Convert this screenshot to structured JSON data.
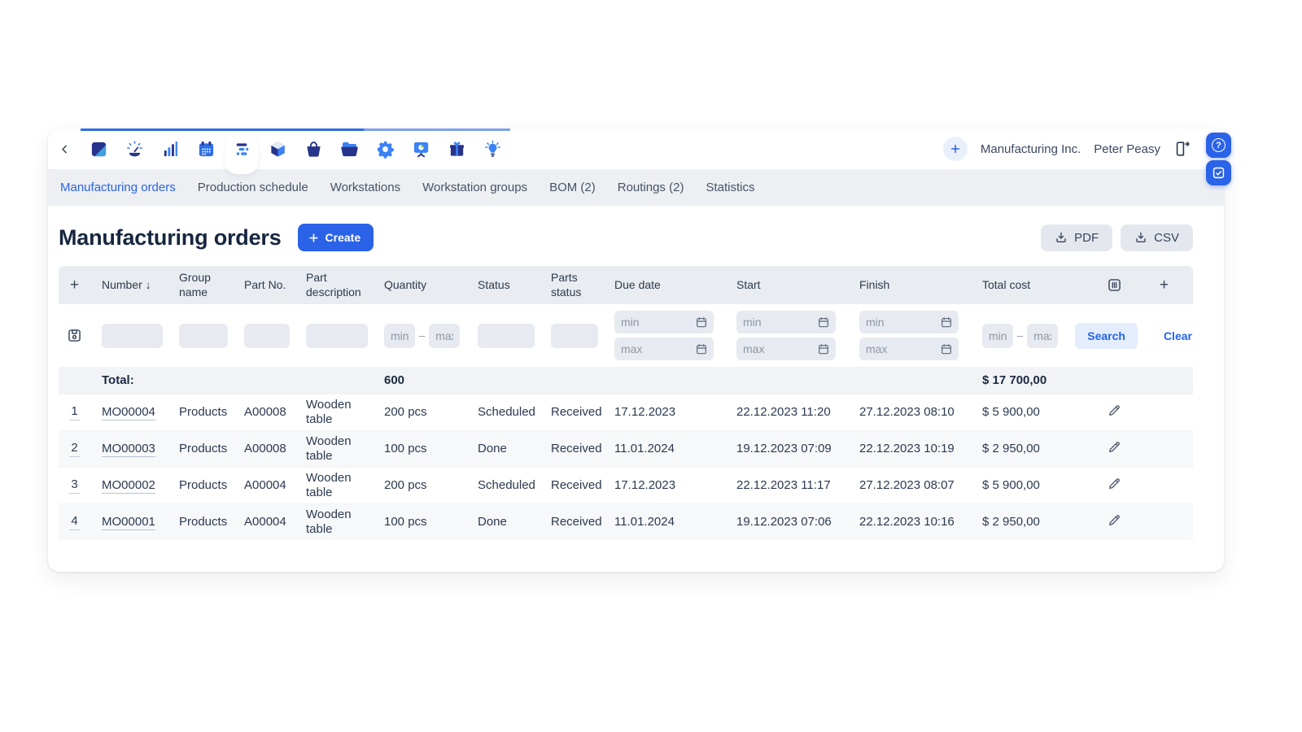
{
  "colors": {
    "accent": "#2a63e8",
    "link": "#2563eb",
    "header_bg": "#e9ecf1",
    "input_bg": "#e7eaf0",
    "tabbar_bg": "#edeff3",
    "navy": "#27348b",
    "blue": "#3b82f6"
  },
  "topbar": {
    "company": "Manufacturing Inc.",
    "user": "Peter Peasy",
    "app_icons": [
      "logo-icon",
      "dashboard-gauge-icon",
      "statistics-icon",
      "calendar-icon",
      "production-planning-icon",
      "stock-icon",
      "procurement-icon",
      "documents-icon",
      "settings-icon",
      "demo-icon",
      "rewards-icon",
      "tips-icon"
    ],
    "edge": {
      "help_glyph": "?"
    }
  },
  "tabs": [
    {
      "label": "Manufacturing orders",
      "active": true
    },
    {
      "label": "Production schedule",
      "active": false
    },
    {
      "label": "Workstations",
      "active": false
    },
    {
      "label": "Workstation groups",
      "active": false
    },
    {
      "label": "BOM (2)",
      "active": false
    },
    {
      "label": "Routings (2)",
      "active": false
    },
    {
      "label": "Statistics",
      "active": false
    }
  ],
  "page": {
    "title": "Manufacturing orders",
    "create_label": "Create",
    "pdf_label": "PDF",
    "csv_label": "CSV"
  },
  "filters": {
    "min_placeholder": "min",
    "max_placeholder": "max",
    "range_separator": "–",
    "search_label": "Search",
    "clear_label": "Clear"
  },
  "table": {
    "header": {
      "add_filter": "+",
      "columns": [
        "Number",
        "Group name",
        "Part No.",
        "Part description",
        "Quantity",
        "Status",
        "Parts status",
        "Due date",
        "Start",
        "Finish",
        "Total cost"
      ],
      "sort_arrow": "↓",
      "add_column": "+"
    },
    "total": {
      "label": "Total:",
      "quantity": "600",
      "cost": "$ 17 700,00"
    },
    "rows": [
      {
        "num": "1",
        "number": "MO00004",
        "group": "Products",
        "part_no": "A00008",
        "part_description": "Wooden table",
        "quantity": "200 pcs",
        "status": "Scheduled",
        "parts_status": "Received",
        "due_date": "17.12.2023",
        "start": "22.12.2023 11:20",
        "finish": "27.12.2023 08:10",
        "total_cost": "$ 5 900,00"
      },
      {
        "num": "2",
        "number": "MO00003",
        "group": "Products",
        "part_no": "A00008",
        "part_description": "Wooden table",
        "quantity": "100 pcs",
        "status": "Done",
        "parts_status": "Received",
        "due_date": "11.01.2024",
        "start": "19.12.2023 07:09",
        "finish": "22.12.2023 10:19",
        "total_cost": "$ 2 950,00"
      },
      {
        "num": "3",
        "number": "MO00002",
        "group": "Products",
        "part_no": "A00004",
        "part_description": "Wooden table",
        "quantity": "200 pcs",
        "status": "Scheduled",
        "parts_status": "Received",
        "due_date": "17.12.2023",
        "start": "22.12.2023 11:17",
        "finish": "27.12.2023 08:07",
        "total_cost": "$ 5 900,00"
      },
      {
        "num": "4",
        "number": "MO00001",
        "group": "Products",
        "part_no": "A00004",
        "part_description": "Wooden table",
        "quantity": "100 pcs",
        "status": "Done",
        "parts_status": "Received",
        "due_date": "11.01.2024",
        "start": "19.12.2023 07:06",
        "finish": "22.12.2023 10:16",
        "total_cost": "$ 2 950,00"
      }
    ]
  }
}
